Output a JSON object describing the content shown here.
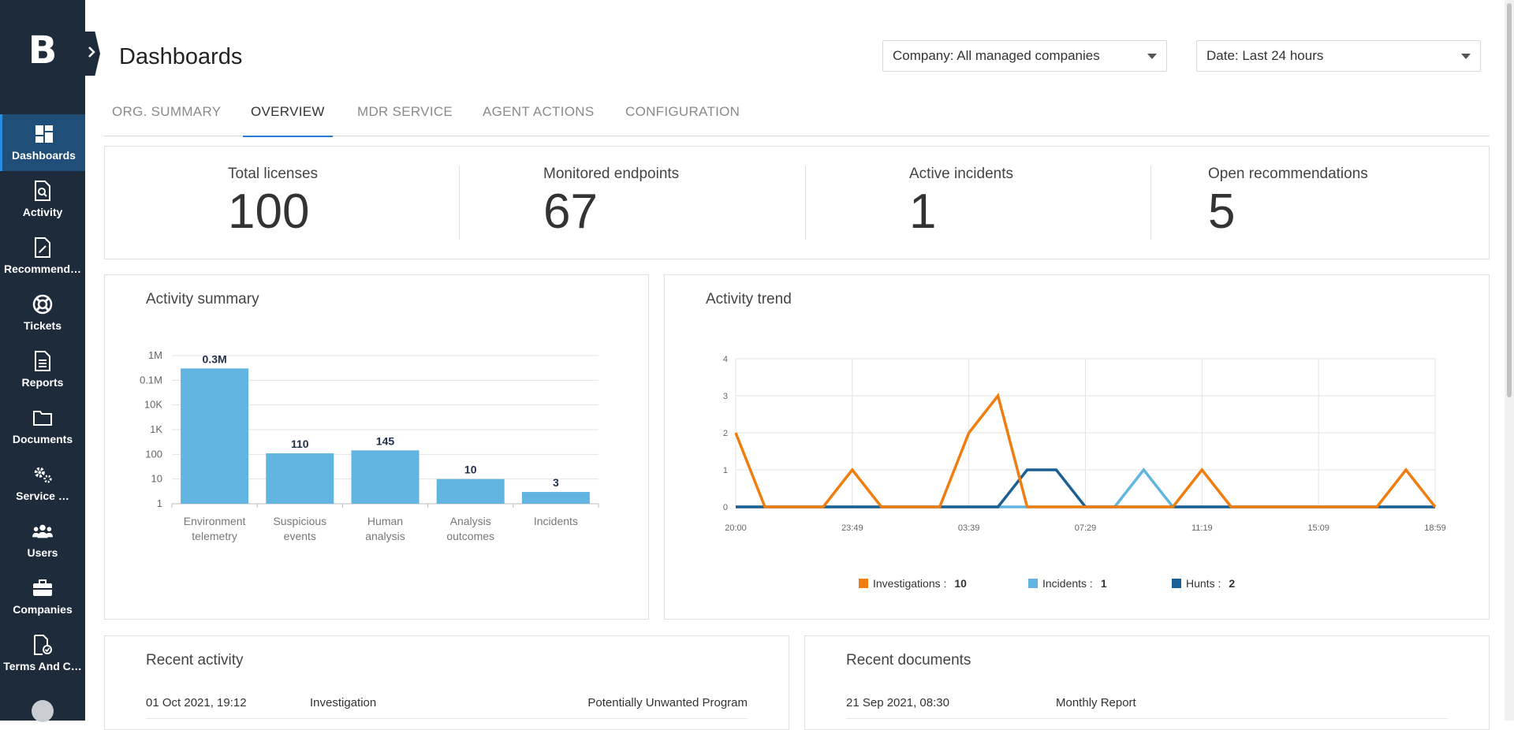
{
  "sidebar": {
    "logo": "B",
    "items": [
      {
        "label": "Dashboards",
        "icon": "dashboard-icon",
        "active": true
      },
      {
        "label": "Activity",
        "icon": "activity-search-icon"
      },
      {
        "label": "Recommend…",
        "icon": "recommendations-icon"
      },
      {
        "label": "Tickets",
        "icon": "lifebuoy-icon"
      },
      {
        "label": "Reports",
        "icon": "report-icon"
      },
      {
        "label": "Documents",
        "icon": "folder-icon"
      },
      {
        "label": "Service …",
        "icon": "gears-icon"
      },
      {
        "label": "Users",
        "icon": "users-icon"
      },
      {
        "label": "Companies",
        "icon": "briefcase-icon"
      },
      {
        "label": "Terms And C…",
        "icon": "terms-icon"
      }
    ]
  },
  "header": {
    "title": "Dashboards",
    "company_select": "Company: All managed companies",
    "date_select": "Date: Last 24 hours"
  },
  "tabs": [
    {
      "label": "ORG. SUMMARY"
    },
    {
      "label": "OVERVIEW",
      "active": true
    },
    {
      "label": "MDR SERVICE"
    },
    {
      "label": "AGENT ACTIONS"
    },
    {
      "label": "CONFIGURATION"
    }
  ],
  "kpis": [
    {
      "label": "Total licenses",
      "value": "100"
    },
    {
      "label": "Monitored endpoints",
      "value": "67"
    },
    {
      "label": "Active incidents",
      "value": "1"
    },
    {
      "label": "Open recommendations",
      "value": "5"
    }
  ],
  "activity_summary": {
    "title": "Activity summary"
  },
  "activity_trend": {
    "title": "Activity trend",
    "legend": [
      {
        "name": "Investigations :",
        "total": "10",
        "color": "#f07d10"
      },
      {
        "name": "Incidents :",
        "total": "1",
        "color": "#62b5e0"
      },
      {
        "name": "Hunts :",
        "total": "2",
        "color": "#1b5f94"
      }
    ]
  },
  "recent_activity": {
    "title": "Recent activity",
    "rows": [
      {
        "date": "01 Oct 2021, 19:12",
        "type": "Investigation",
        "name": "Potentially Unwanted Program"
      }
    ]
  },
  "recent_documents": {
    "title": "Recent documents",
    "rows": [
      {
        "date": "21 Sep 2021, 08:30",
        "name": "Monthly Report"
      }
    ]
  },
  "chart_data": [
    {
      "type": "bar",
      "title": "Activity summary",
      "scale": "log",
      "categories": [
        "Environment telemetry",
        "Suspicious events",
        "Human analysis",
        "Analysis outcomes",
        "Incidents"
      ],
      "values": [
        300000,
        110,
        145,
        10,
        3
      ],
      "value_labels": [
        "0.3M",
        "110",
        "145",
        "10",
        "3"
      ],
      "y_ticks": [
        "1",
        "10",
        "100",
        "1K",
        "10K",
        "0.1M",
        "1M"
      ],
      "ylim": [
        1,
        1000000
      ],
      "color": "#62b5e0"
    },
    {
      "type": "line",
      "title": "Activity trend",
      "x_tick_labels": [
        "20:00",
        "23:49",
        "03:39",
        "07:29",
        "11:19",
        "15:09",
        "18:59"
      ],
      "ylim": [
        0,
        4
      ],
      "y_ticks": [
        0,
        1,
        2,
        3,
        4
      ],
      "series": [
        {
          "name": "Investigations",
          "color": "#f07d10",
          "values": [
            2,
            0,
            0,
            0,
            1,
            0,
            0,
            0,
            2,
            3,
            0,
            0,
            0,
            0,
            0,
            0,
            1,
            0,
            0,
            0,
            0,
            0,
            0,
            1,
            0
          ]
        },
        {
          "name": "Incidents",
          "color": "#62b5e0",
          "values": [
            0,
            0,
            0,
            0,
            0,
            0,
            0,
            0,
            0,
            0,
            0,
            0,
            0,
            0,
            1,
            0,
            0,
            0,
            0,
            0,
            0,
            0,
            0,
            0,
            0
          ]
        },
        {
          "name": "Hunts",
          "color": "#1b5f94",
          "values": [
            0,
            0,
            0,
            0,
            0,
            0,
            0,
            0,
            0,
            0,
            1,
            1,
            0,
            0,
            0,
            0,
            0,
            0,
            0,
            0,
            0,
            0,
            0,
            0,
            0
          ]
        }
      ]
    }
  ]
}
